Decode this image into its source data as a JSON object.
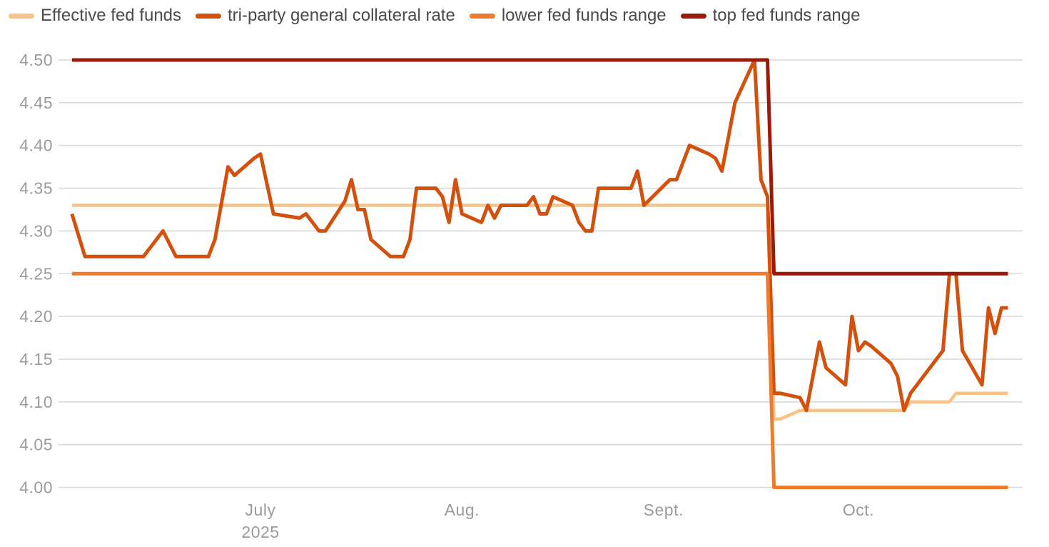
{
  "legend": {
    "items": [
      {
        "id": "effective-fed-funds",
        "label": "Effective fed funds",
        "color": "#f9c387"
      },
      {
        "id": "tri-party-general-collateral-rate",
        "label": "tri-party general collateral rate",
        "color": "#d4500d"
      },
      {
        "id": "lower-fed-funds-range",
        "label": "lower fed funds range",
        "color": "#ee7c30"
      },
      {
        "id": "top-fed-funds-range",
        "label": "top fed funds range",
        "color": "#9c1a0a"
      }
    ]
  },
  "colors": {
    "background": "#ffffff",
    "grid": "#d9d9d9",
    "axis_text": "#9b9b9b",
    "legend_text": "#4a4a4a"
  },
  "chart_data": {
    "type": "line",
    "title": "",
    "legend_position": "top",
    "grid": true,
    "y_axis": {
      "min": 4.0,
      "max": 4.5,
      "step": 0.05,
      "ticks": [
        "4.50",
        "4.45",
        "4.40",
        "4.35",
        "4.30",
        "4.25",
        "4.20",
        "4.15",
        "4.10",
        "4.05",
        "4.00"
      ]
    },
    "x_axis": {
      "range": [
        "2025-06-02",
        "2025-10-24"
      ],
      "ticks": [
        {
          "label": "July",
          "sublabel": "2025",
          "date": "2025-07-01"
        },
        {
          "label": "Aug.",
          "date": "2025-08-01"
        },
        {
          "label": "Sept.",
          "date": "2025-09-01"
        },
        {
          "label": "Oct.",
          "date": "2025-10-01"
        }
      ]
    },
    "series": [
      {
        "id": "effective-fed-funds",
        "name": "Effective fed funds",
        "color": "#f9c387",
        "width": 4.5,
        "points": [
          [
            "2025-06-02",
            4.33
          ],
          [
            "2025-09-17",
            4.33
          ],
          [
            "2025-09-18",
            4.08
          ],
          [
            "2025-09-19",
            4.08
          ],
          [
            "2025-09-22",
            4.09
          ],
          [
            "2025-10-08",
            4.09
          ],
          [
            "2025-10-09",
            4.1
          ],
          [
            "2025-10-15",
            4.1
          ],
          [
            "2025-10-16",
            4.11
          ],
          [
            "2025-10-24",
            4.11
          ]
        ]
      },
      {
        "id": "tri-party-general-collateral-rate",
        "name": "tri-party general collateral rate",
        "color": "#d4500d",
        "width": 5,
        "points": [
          [
            "2025-06-02",
            4.32
          ],
          [
            "2025-06-04",
            4.27
          ],
          [
            "2025-06-13",
            4.27
          ],
          [
            "2025-06-16",
            4.3
          ],
          [
            "2025-06-18",
            4.27
          ],
          [
            "2025-06-23",
            4.27
          ],
          [
            "2025-06-24",
            4.29
          ],
          [
            "2025-06-26",
            4.375
          ],
          [
            "2025-06-27",
            4.365
          ],
          [
            "2025-06-30",
            4.385
          ],
          [
            "2025-07-01",
            4.39
          ],
          [
            "2025-07-03",
            4.32
          ],
          [
            "2025-07-07",
            4.315
          ],
          [
            "2025-07-08",
            4.32
          ],
          [
            "2025-07-09",
            4.31
          ],
          [
            "2025-07-10",
            4.3
          ],
          [
            "2025-07-11",
            4.3
          ],
          [
            "2025-07-14",
            4.335
          ],
          [
            "2025-07-15",
            4.36
          ],
          [
            "2025-07-16",
            4.325
          ],
          [
            "2025-07-17",
            4.325
          ],
          [
            "2025-07-18",
            4.29
          ],
          [
            "2025-07-21",
            4.27
          ],
          [
            "2025-07-23",
            4.27
          ],
          [
            "2025-07-24",
            4.29
          ],
          [
            "2025-07-25",
            4.35
          ],
          [
            "2025-07-28",
            4.35
          ],
          [
            "2025-07-29",
            4.34
          ],
          [
            "2025-07-30",
            4.31
          ],
          [
            "2025-07-31",
            4.36
          ],
          [
            "2025-08-01",
            4.32
          ],
          [
            "2025-08-04",
            4.31
          ],
          [
            "2025-08-05",
            4.33
          ],
          [
            "2025-08-06",
            4.315
          ],
          [
            "2025-08-07",
            4.33
          ],
          [
            "2025-08-11",
            4.33
          ],
          [
            "2025-08-12",
            4.34
          ],
          [
            "2025-08-13",
            4.32
          ],
          [
            "2025-08-14",
            4.32
          ],
          [
            "2025-08-15",
            4.34
          ],
          [
            "2025-08-18",
            4.33
          ],
          [
            "2025-08-19",
            4.31
          ],
          [
            "2025-08-20",
            4.3
          ],
          [
            "2025-08-21",
            4.3
          ],
          [
            "2025-08-22",
            4.35
          ],
          [
            "2025-08-27",
            4.35
          ],
          [
            "2025-08-28",
            4.37
          ],
          [
            "2025-08-29",
            4.33
          ],
          [
            "2025-09-02",
            4.36
          ],
          [
            "2025-09-03",
            4.36
          ],
          [
            "2025-09-04",
            4.38
          ],
          [
            "2025-09-05",
            4.4
          ],
          [
            "2025-09-08",
            4.39
          ],
          [
            "2025-09-09",
            4.385
          ],
          [
            "2025-09-10",
            4.37
          ],
          [
            "2025-09-11",
            4.41
          ],
          [
            "2025-09-12",
            4.45
          ],
          [
            "2025-09-15",
            4.5
          ],
          [
            "2025-09-16",
            4.36
          ],
          [
            "2025-09-17",
            4.34
          ],
          [
            "2025-09-18",
            4.11
          ],
          [
            "2025-09-19",
            4.11
          ],
          [
            "2025-09-22",
            4.105
          ],
          [
            "2025-09-23",
            4.09
          ],
          [
            "2025-09-24",
            4.13
          ],
          [
            "2025-09-25",
            4.17
          ],
          [
            "2025-09-26",
            4.14
          ],
          [
            "2025-09-29",
            4.12
          ],
          [
            "2025-09-30",
            4.2
          ],
          [
            "2025-10-01",
            4.16
          ],
          [
            "2025-10-02",
            4.17
          ],
          [
            "2025-10-03",
            4.165
          ],
          [
            "2025-10-06",
            4.145
          ],
          [
            "2025-10-07",
            4.13
          ],
          [
            "2025-10-08",
            4.09
          ],
          [
            "2025-10-09",
            4.11
          ],
          [
            "2025-10-10",
            4.12
          ],
          [
            "2025-10-13",
            4.15
          ],
          [
            "2025-10-14",
            4.16
          ],
          [
            "2025-10-15",
            4.25
          ],
          [
            "2025-10-16",
            4.25
          ],
          [
            "2025-10-17",
            4.16
          ],
          [
            "2025-10-20",
            4.12
          ],
          [
            "2025-10-21",
            4.21
          ],
          [
            "2025-10-22",
            4.18
          ],
          [
            "2025-10-23",
            4.21
          ],
          [
            "2025-10-24",
            4.21
          ]
        ]
      },
      {
        "id": "lower-fed-funds-range",
        "name": "lower fed funds range",
        "color": "#ee7c30",
        "width": 5,
        "points": [
          [
            "2025-06-02",
            4.25
          ],
          [
            "2025-09-17",
            4.25
          ],
          [
            "2025-09-18",
            4.0
          ],
          [
            "2025-10-24",
            4.0
          ]
        ]
      },
      {
        "id": "top-fed-funds-range",
        "name": "top fed funds range",
        "color": "#9c1a0a",
        "width": 5,
        "points": [
          [
            "2025-06-02",
            4.5
          ],
          [
            "2025-09-17",
            4.5
          ],
          [
            "2025-09-18",
            4.25
          ],
          [
            "2025-10-24",
            4.25
          ]
        ]
      }
    ]
  }
}
